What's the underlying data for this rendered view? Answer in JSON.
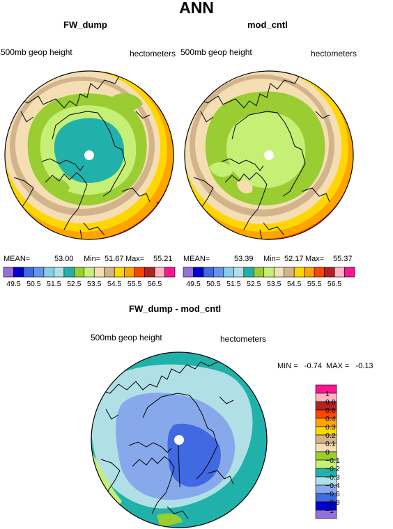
{
  "title": "ANN",
  "panels": [
    {
      "title": "FW_dump",
      "field": "500mb geop height",
      "units": "hectometers",
      "stats": {
        "mean_label": "MEAN=",
        "mean": "53.00",
        "min_label": "Min=",
        "min": "51.67",
        "max_label": "Max=",
        "max": "55.21"
      }
    },
    {
      "title": "mod_cntl",
      "field": "500mb geop height",
      "units": "hectometers",
      "stats": {
        "mean_label": "MEAN=",
        "mean": "53.39",
        "min_label": "Min=",
        "min": "52.17",
        "max_label": "Max=",
        "max": "55.37"
      }
    }
  ],
  "diff_panel": {
    "title": "FW_dump - mod_cntl",
    "field": "500mb geop height",
    "units": "hectometers",
    "minmax_text": "MIN =   -0.74  MAX =   -0.13"
  },
  "chart_data": [
    {
      "type": "heatmap",
      "title": "FW_dump",
      "projection": "north polar stereographic",
      "field": "500mb geop height",
      "units": "hectometers",
      "mean": 53.0,
      "min": 51.67,
      "max": 55.21,
      "levels": [
        49.5,
        50,
        50.5,
        51,
        51.5,
        52,
        52.5,
        53,
        53.5,
        54,
        54.5,
        55,
        55.5,
        56,
        56.5
      ],
      "level_labels": [
        "49.5",
        "50.5",
        "51.5",
        "52.5",
        "53.5",
        "54.5",
        "55.5",
        "56.5"
      ]
    },
    {
      "type": "heatmap",
      "title": "mod_cntl",
      "projection": "north polar stereographic",
      "field": "500mb geop height",
      "units": "hectometers",
      "mean": 53.39,
      "min": 52.17,
      "max": 55.37,
      "levels": [
        49.5,
        50,
        50.5,
        51,
        51.5,
        52,
        52.5,
        53,
        53.5,
        54,
        54.5,
        55,
        55.5,
        56,
        56.5
      ],
      "level_labels": [
        "49.5",
        "50.5",
        "51.5",
        "52.5",
        "53.5",
        "54.5",
        "55.5",
        "56.5"
      ]
    },
    {
      "type": "heatmap",
      "title": "FW_dump - mod_cntl",
      "projection": "north polar stereographic",
      "field": "500mb geop height",
      "units": "hectometers",
      "min": -0.74,
      "max": -0.13,
      "levels": [
        -1,
        -0.8,
        -0.6,
        -0.4,
        -0.3,
        -0.2,
        -0.1,
        0,
        0.1,
        0.2,
        0.3,
        0.4,
        0.6,
        0.8,
        1
      ],
      "level_labels": [
        "1",
        "0.8",
        "0.6",
        "0.4",
        "0.3",
        "0.2",
        "0.1",
        "0",
        "−0.1",
        "−0.2",
        "−0.3",
        "−0.4",
        "−0.6",
        "−0.8",
        "−1"
      ]
    }
  ],
  "colors": {
    "abs_scale": [
      "#9370db",
      "#0000cd",
      "#4169e1",
      "#6495ed",
      "#87ceeb",
      "#b0e0e6",
      "#20b2aa",
      "#9acd32",
      "#c6ef75",
      "#f5deb3",
      "#d2b48c",
      "#ffd700",
      "#ffa500",
      "#ff4500",
      "#b22222",
      "#ffb6c1",
      "#ff1493"
    ],
    "diff_scale": [
      "#ff1493",
      "#ffb6c1",
      "#b22222",
      "#ff4500",
      "#ffa500",
      "#ffd700",
      "#d2b48c",
      "#f5deb3",
      "#9acd32",
      "#c6ef75",
      "#20b2aa",
      "#b0e0e6",
      "#87a9eb",
      "#4169e1",
      "#0000cd",
      "#9370db"
    ]
  }
}
